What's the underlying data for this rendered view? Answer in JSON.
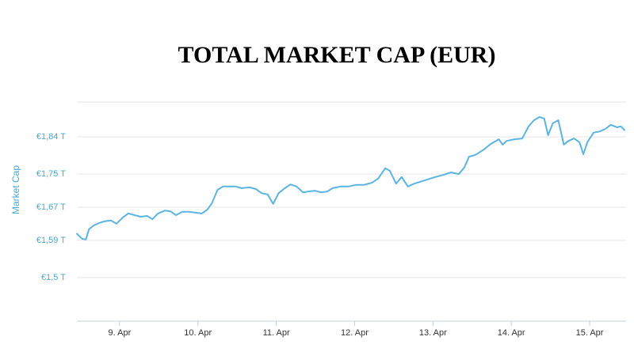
{
  "chart_data": {
    "type": "line",
    "title": "TOTAL MARKET CAP (EUR)",
    "y_label": "Market Cap",
    "color": "#5ab4e5",
    "grid": true,
    "xlim": [
      8.455,
      15.465
    ],
    "xticks": [
      {
        "value": 9,
        "label": "9. Apr"
      },
      {
        "value": 10,
        "label": "10. Apr"
      },
      {
        "value": 11,
        "label": "11. Apr"
      },
      {
        "value": 12,
        "label": "12. Apr"
      },
      {
        "value": 13,
        "label": "13. Apr"
      },
      {
        "value": 14,
        "label": "14. Apr"
      },
      {
        "value": 15,
        "label": "15. Apr"
      }
    ],
    "ylim": [
      1.395,
      1.924
    ],
    "yticks": [
      {
        "value": 1.5,
        "label": "€1,5 T"
      },
      {
        "value": 1.59,
        "label": "€1,59 T"
      },
      {
        "value": 1.67,
        "label": "€1,67 T"
      },
      {
        "value": 1.75,
        "label": "€1,75 T"
      },
      {
        "value": 1.84,
        "label": "€1,84 T"
      }
    ],
    "x": [
      8.45,
      8.52,
      8.57,
      8.61,
      8.67,
      8.74,
      8.81,
      8.89,
      8.96,
      9.04,
      9.11,
      9.19,
      9.27,
      9.35,
      9.42,
      9.49,
      9.58,
      9.65,
      9.72,
      9.8,
      9.88,
      9.96,
      10.05,
      10.12,
      10.18,
      10.25,
      10.32,
      10.4,
      10.48,
      10.56,
      10.66,
      10.74,
      10.81,
      10.89,
      10.96,
      11.03,
      11.11,
      11.18,
      11.26,
      11.34,
      11.41,
      11.49,
      11.57,
      11.65,
      11.72,
      11.82,
      11.92,
      12.02,
      12.12,
      12.22,
      12.3,
      12.39,
      12.45,
      12.53,
      12.6,
      12.68,
      12.76,
      12.83,
      12.93,
      13.03,
      13.13,
      13.23,
      13.33,
      13.4,
      13.46,
      13.54,
      13.64,
      13.74,
      13.84,
      13.89,
      13.94,
      14.04,
      14.14,
      14.22,
      14.29,
      14.36,
      14.42,
      14.47,
      14.53,
      14.6,
      14.67,
      14.73,
      14.8,
      14.87,
      14.92,
      14.97,
      15.05,
      15.13,
      15.2,
      15.27,
      15.35,
      15.4,
      15.45
    ],
    "values": [
      1.607,
      1.594,
      1.592,
      1.617,
      1.626,
      1.632,
      1.636,
      1.638,
      1.63,
      1.645,
      1.655,
      1.651,
      1.647,
      1.649,
      1.641,
      1.655,
      1.662,
      1.66,
      1.651,
      1.659,
      1.659,
      1.657,
      1.655,
      1.664,
      1.68,
      1.712,
      1.72,
      1.72,
      1.72,
      1.716,
      1.718,
      1.714,
      1.704,
      1.701,
      1.678,
      1.704,
      1.716,
      1.725,
      1.72,
      1.706,
      1.708,
      1.71,
      1.706,
      1.708,
      1.716,
      1.72,
      1.72,
      1.724,
      1.724,
      1.729,
      1.739,
      1.764,
      1.758,
      1.727,
      1.743,
      1.72,
      1.727,
      1.731,
      1.737,
      1.743,
      1.748,
      1.754,
      1.75,
      1.766,
      1.792,
      1.796,
      1.808,
      1.823,
      1.834,
      1.821,
      1.83,
      1.834,
      1.836,
      1.865,
      1.88,
      1.888,
      1.884,
      1.844,
      1.873,
      1.88,
      1.821,
      1.83,
      1.836,
      1.827,
      1.798,
      1.827,
      1.85,
      1.853,
      1.859,
      1.869,
      1.863,
      1.865,
      1.855
    ]
  }
}
